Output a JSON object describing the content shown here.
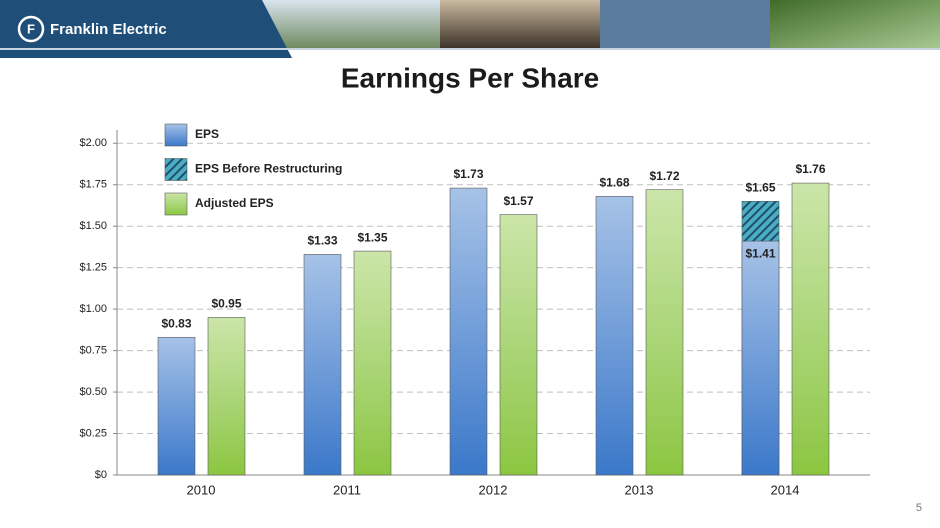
{
  "logo_text": "Franklin Electric",
  "page_number": "5",
  "chart_data": {
    "type": "bar",
    "title": "Earnings Per Share",
    "categories": [
      "2010",
      "2011",
      "2012",
      "2013",
      "2014"
    ],
    "series": [
      {
        "name": "EPS",
        "color": "#3a78c9",
        "fill": "gradient",
        "values": [
          0.83,
          1.33,
          1.73,
          1.68,
          1.41
        ],
        "value_labels": [
          "$0.83",
          "$1.33",
          "$1.73",
          "$1.68",
          "$1.41"
        ]
      },
      {
        "name": "EPS Before Restructuring",
        "color": "#4bacc6",
        "fill": "hatch",
        "values": [
          null,
          null,
          null,
          null,
          1.65
        ],
        "value_labels": [
          null,
          null,
          null,
          null,
          "$1.65"
        ]
      },
      {
        "name": "Adjusted EPS",
        "color": "#8cc63f",
        "fill": "gradient",
        "values": [
          0.95,
          1.35,
          1.57,
          1.72,
          1.76
        ],
        "value_labels": [
          "$0.95",
          "$1.35",
          "$1.57",
          "$1.72",
          "$1.76"
        ]
      }
    ],
    "ylim": [
      0,
      2.08
    ],
    "yticks": [
      {
        "value": 0,
        "label": "$0"
      },
      {
        "value": 0.25,
        "label": "$0.25"
      },
      {
        "value": 0.5,
        "label": "$0.50"
      },
      {
        "value": 0.75,
        "label": "$0.75"
      },
      {
        "value": 1,
        "label": "$1.00"
      },
      {
        "value": 1.25,
        "label": "$1.25"
      },
      {
        "value": 1.5,
        "label": "$1.50"
      },
      {
        "value": 1.75,
        "label": "$1.75"
      },
      {
        "value": 2,
        "label": "$2.00"
      }
    ],
    "grid": true,
    "legend": "upper left"
  }
}
